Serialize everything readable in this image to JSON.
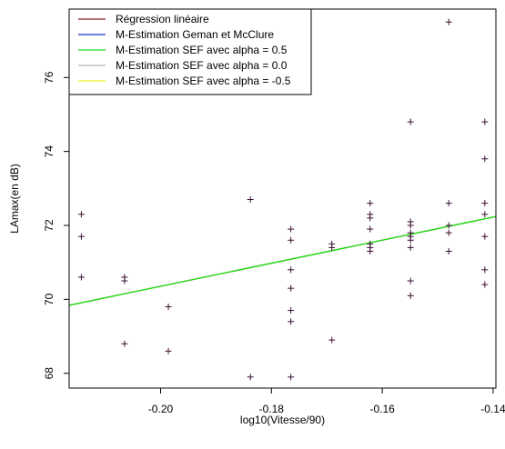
{
  "chart_data": {
    "type": "scatter",
    "title": "",
    "xlabel": "log10(Vitesse/90)",
    "ylabel": "LAmax(en dB)",
    "xlim": [
      -0.2165,
      -0.1395
    ],
    "ylim": [
      67.6,
      77.85
    ],
    "x_ticks": [
      -0.2,
      -0.18,
      -0.16,
      -0.14
    ],
    "x_tick_labels": [
      "-0.20",
      "-0.18",
      "-0.16",
      "-0.14"
    ],
    "y_ticks": [
      68,
      70,
      72,
      74,
      76
    ],
    "y_tick_labels": [
      "68",
      "70",
      "72",
      "74",
      "76"
    ],
    "grid": false,
    "legend_position": "top-left",
    "point_marker": "+",
    "point_color": "#3b1030",
    "points": [
      {
        "x": -0.2143,
        "y": 72.3
      },
      {
        "x": -0.2143,
        "y": 71.7
      },
      {
        "x": -0.2143,
        "y": 70.6
      },
      {
        "x": -0.2065,
        "y": 70.6
      },
      {
        "x": -0.2065,
        "y": 70.5
      },
      {
        "x": -0.2065,
        "y": 68.8
      },
      {
        "x": -0.1986,
        "y": 69.8
      },
      {
        "x": -0.1986,
        "y": 68.6
      },
      {
        "x": -0.1838,
        "y": 72.7
      },
      {
        "x": -0.1838,
        "y": 67.9
      },
      {
        "x": -0.1765,
        "y": 71.9
      },
      {
        "x": -0.1765,
        "y": 71.6
      },
      {
        "x": -0.1765,
        "y": 70.8
      },
      {
        "x": -0.1765,
        "y": 70.3
      },
      {
        "x": -0.1765,
        "y": 69.7
      },
      {
        "x": -0.1765,
        "y": 69.4
      },
      {
        "x": -0.1765,
        "y": 67.9
      },
      {
        "x": -0.1691,
        "y": 71.5
      },
      {
        "x": -0.1691,
        "y": 71.4
      },
      {
        "x": -0.1691,
        "y": 68.9
      },
      {
        "x": -0.1622,
        "y": 72.6
      },
      {
        "x": -0.1622,
        "y": 72.3
      },
      {
        "x": -0.1622,
        "y": 72.2
      },
      {
        "x": -0.1622,
        "y": 71.9
      },
      {
        "x": -0.1622,
        "y": 71.5
      },
      {
        "x": -0.1622,
        "y": 71.4
      },
      {
        "x": -0.1622,
        "y": 71.3
      },
      {
        "x": -0.1549,
        "y": 74.8
      },
      {
        "x": -0.1549,
        "y": 72.1
      },
      {
        "x": -0.1549,
        "y": 72.0
      },
      {
        "x": -0.1549,
        "y": 71.8
      },
      {
        "x": -0.1549,
        "y": 71.7
      },
      {
        "x": -0.1549,
        "y": 71.6
      },
      {
        "x": -0.1549,
        "y": 71.4
      },
      {
        "x": -0.1549,
        "y": 70.5
      },
      {
        "x": -0.1549,
        "y": 70.1
      },
      {
        "x": -0.148,
        "y": 77.5
      },
      {
        "x": -0.148,
        "y": 72.6
      },
      {
        "x": -0.148,
        "y": 72.0
      },
      {
        "x": -0.148,
        "y": 71.8
      },
      {
        "x": -0.148,
        "y": 71.3
      },
      {
        "x": -0.1415,
        "y": 74.8
      },
      {
        "x": -0.1415,
        "y": 73.8
      },
      {
        "x": -0.1415,
        "y": 72.6
      },
      {
        "x": -0.1415,
        "y": 72.3
      },
      {
        "x": -0.1415,
        "y": 71.7
      },
      {
        "x": -0.1415,
        "y": 70.8
      },
      {
        "x": -0.1415,
        "y": 70.4
      }
    ],
    "series": [
      {
        "name": "Régression linéaire",
        "color": "#8b2020",
        "type": "line",
        "x": [
          -0.2165,
          -0.1395
        ],
        "y": [
          69.84,
          72.24
        ]
      },
      {
        "name": "M-Estimation Geman et McClure",
        "color": "#1a33cc",
        "type": "line",
        "x": [
          -0.2165,
          -0.1395
        ],
        "y": [
          69.84,
          72.24
        ]
      },
      {
        "name": "M-Estimation SEF avec alpha = 0.5",
        "color": "#22dd22",
        "type": "line",
        "x": [
          -0.2165,
          -0.1395
        ],
        "y": [
          69.84,
          72.24
        ]
      },
      {
        "name": "M-Estimation SEF avec alpha = 0.0",
        "color": "#b8b8b8",
        "type": "line",
        "x": [
          -0.2165,
          -0.1395
        ],
        "y": [
          69.84,
          72.24
        ]
      },
      {
        "name": "M-Estimation SEF avec alpha = -0.5",
        "color": "#eeee22",
        "type": "line",
        "x": [
          -0.2165,
          -0.1395
        ],
        "y": [
          69.84,
          72.24
        ]
      }
    ]
  }
}
